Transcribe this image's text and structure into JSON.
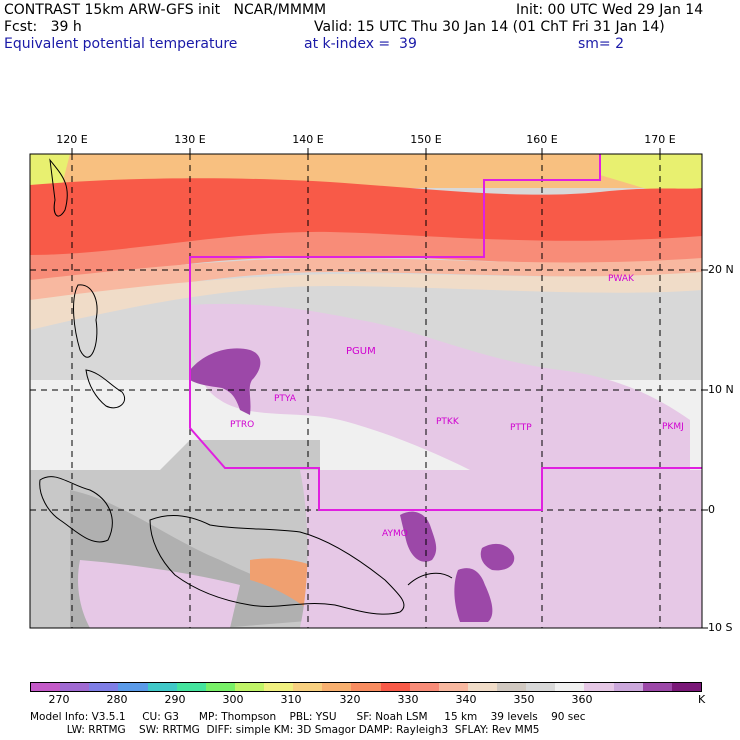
{
  "header": {
    "line1_left": "CONTRAST 15km ARW-GFS init   NCAR/MMMM",
    "line1_right": "Init: 00 UTC Wed 29 Jan 14",
    "line2_left": "Fcst:   39 h",
    "line2_right": "Valid: 15 UTC Thu 30 Jan 14 (01 ChT Fri 31 Jan 14)",
    "line3_left": "Equivalent potential temperature",
    "line3_mid": "at k-index =  39",
    "line3_right": "sm= 2"
  },
  "map": {
    "lon_labels": [
      "120 E",
      "130 E",
      "140 E",
      "150 E",
      "160 E",
      "170 E"
    ],
    "lat_labels": [
      "20 N",
      "10 N",
      "0",
      "10 S"
    ],
    "stations": [
      "PWAK",
      "PGUM",
      "PTYA",
      "PTRO",
      "PTKK",
      "PTTP",
      "PKMJ",
      "AYMO"
    ]
  },
  "colorbar": {
    "labels": [
      "270",
      "280",
      "290",
      "300",
      "310",
      "320",
      "330",
      "340",
      "350",
      "360"
    ],
    "unit": "K",
    "colors": [
      "#c45ac8",
      "#a06ad2",
      "#7f7ee6",
      "#5a9ae8",
      "#40c8c8",
      "#44e49e",
      "#78f068",
      "#c0f468",
      "#f0f080",
      "#f8d080",
      "#f8b070",
      "#f88c60",
      "#f85a48",
      "#f88c78",
      "#f8b8a0",
      "#f0dcc8",
      "#d0c8c0",
      "#d8d8d8",
      "#f0f0f0",
      "#e6c8e6",
      "#cca8dc",
      "#9c48a8",
      "#7a1878"
    ]
  },
  "footer": {
    "line1": "Model Info: V3.5.1     CU: G3      MP: Thompson    PBL: YSU      SF: Noah LSM     15 km    39 levels    90 sec",
    "line2": "           LW: RRTMG    SW: RRTMG  DIFF: simple KM: 3D Smagor DAMP: Rayleigh3  SFLAY: Rev MM5"
  }
}
